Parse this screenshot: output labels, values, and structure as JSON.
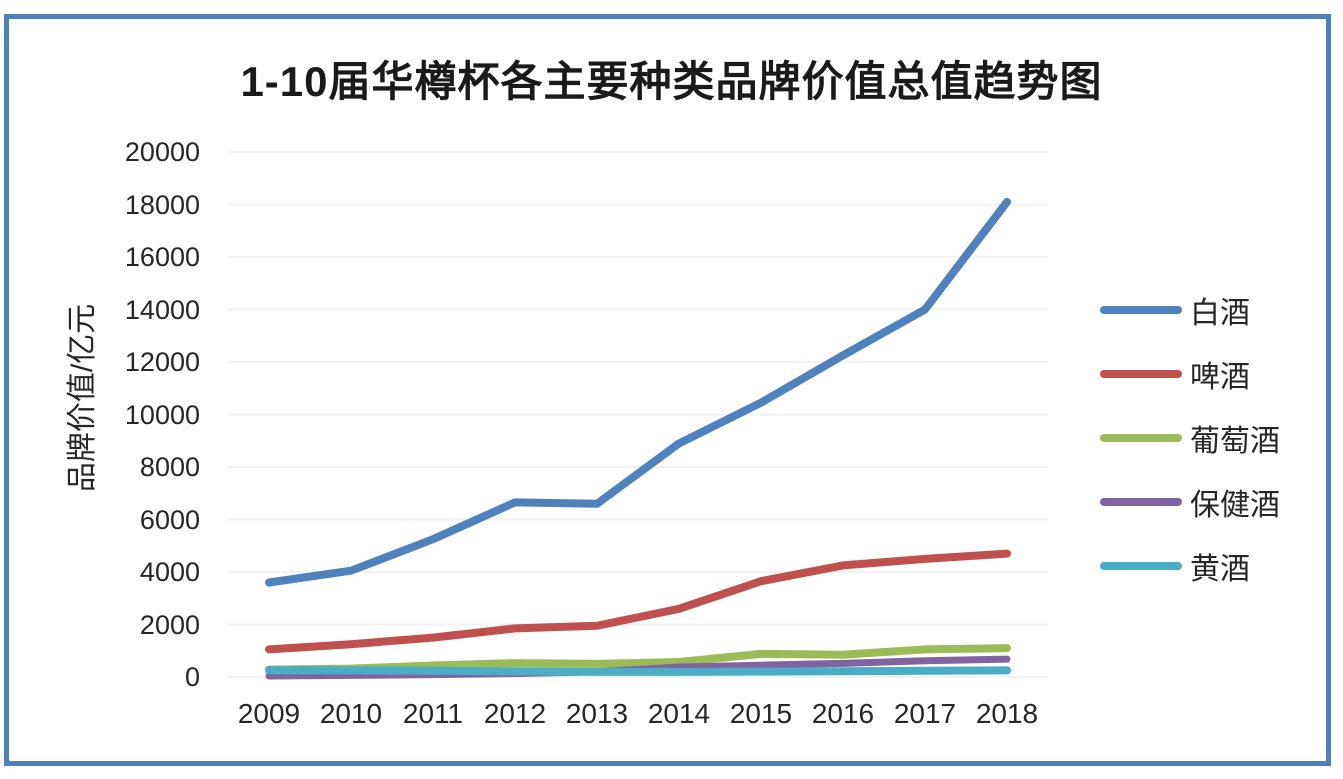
{
  "page": {
    "border_color": "#4E80BC",
    "background": "#FFFFFF",
    "grid_color": "#F2F2F2"
  },
  "chart_data": {
    "type": "line",
    "title": "1-10届华樽杯各主要种类品牌价值总值趋势图",
    "xlabel": "",
    "ylabel": "品牌价值/亿元",
    "categories": [
      "2009",
      "2010",
      "2011",
      "2012",
      "2013",
      "2014",
      "2015",
      "2016",
      "2017",
      "2018"
    ],
    "y_ticks": [
      0,
      2000,
      4000,
      6000,
      8000,
      10000,
      12000,
      14000,
      16000,
      18000,
      20000
    ],
    "ylim": [
      0,
      20000
    ],
    "grid": "horizontal",
    "legend_position": "right",
    "series": [
      {
        "key": "baijiu",
        "name": "白酒",
        "color": "#4F81BD",
        "stroke_width": 8,
        "values": [
          3600,
          4050,
          5250,
          6650,
          6600,
          8900,
          10450,
          12250,
          14000,
          18100
        ]
      },
      {
        "key": "pijiu",
        "name": "啤酒",
        "color": "#C0504D",
        "stroke_width": 8,
        "values": [
          1050,
          1250,
          1500,
          1850,
          1950,
          2600,
          3650,
          4250,
          4500,
          4700
        ]
      },
      {
        "key": "putaojiu",
        "name": "葡萄酒",
        "color": "#9BBB59",
        "stroke_width": 8,
        "values": [
          280,
          320,
          440,
          530,
          500,
          570,
          880,
          850,
          1050,
          1100
        ]
      },
      {
        "key": "baojianjiu",
        "name": "保健酒",
        "color": "#8064A2",
        "stroke_width": 7,
        "values": [
          40,
          60,
          90,
          130,
          200,
          380,
          450,
          520,
          620,
          680
        ]
      },
      {
        "key": "huangjiu",
        "name": "黄酒",
        "color": "#4BACC6",
        "stroke_width": 8,
        "values": [
          260,
          250,
          235,
          215,
          195,
          195,
          205,
          220,
          235,
          250
        ]
      }
    ]
  }
}
